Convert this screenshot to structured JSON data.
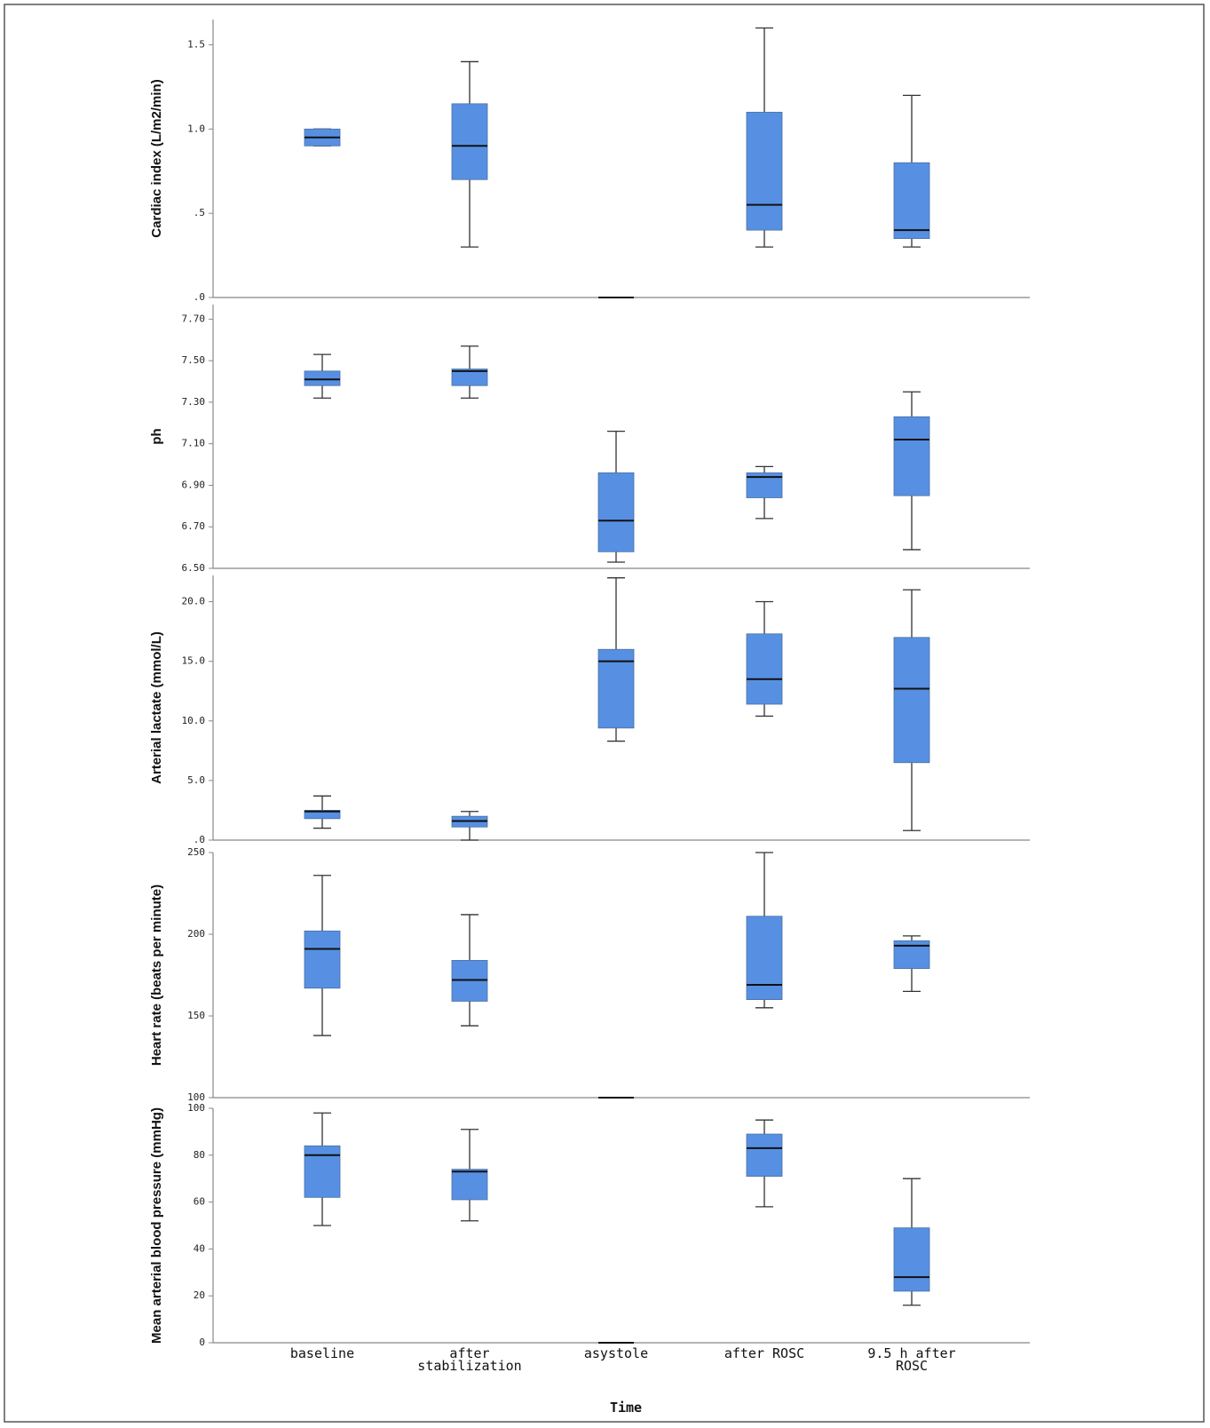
{
  "chart_data": [
    {
      "type": "box",
      "y_label": "Cardiac index (L/m2/min)",
      "color": "#5790e2",
      "ylim": [
        0,
        1.65
      ],
      "yticks": [
        {
          "value": 0,
          "label": ".0"
        },
        {
          "value": 0.5,
          "label": ".5"
        },
        {
          "value": 1.0,
          "label": "1.0"
        },
        {
          "value": 1.5,
          "label": "1.5"
        }
      ],
      "boxes": [
        {
          "whislo": 0.9,
          "q1": 0.9,
          "med": 0.95,
          "q3": 1.0,
          "whishi": 1.0
        },
        {
          "whislo": 0.3,
          "q1": 0.7,
          "med": 0.9,
          "q3": 1.15,
          "whishi": 1.4
        },
        {
          "whislo": 0,
          "q1": 0,
          "med": 0,
          "q3": 0,
          "whishi": 0
        },
        {
          "whislo": 0.3,
          "q1": 0.4,
          "med": 0.55,
          "q3": 1.1,
          "whishi": 1.6
        },
        {
          "whislo": 0.3,
          "q1": 0.35,
          "med": 0.4,
          "q3": 0.8,
          "whishi": 1.2
        }
      ]
    },
    {
      "type": "box",
      "y_label": "ph",
      "color": "#5790e2",
      "ylim": [
        6.5,
        7.77
      ],
      "yticks": [
        {
          "value": 6.5,
          "label": "6.50"
        },
        {
          "value": 6.7,
          "label": "6.70"
        },
        {
          "value": 6.9,
          "label": "6.90"
        },
        {
          "value": 7.1,
          "label": "7.10"
        },
        {
          "value": 7.3,
          "label": "7.30"
        },
        {
          "value": 7.5,
          "label": "7.50"
        },
        {
          "value": 7.7,
          "label": "7.70"
        }
      ],
      "boxes": [
        {
          "whislo": 7.32,
          "q1": 7.38,
          "med": 7.41,
          "q3": 7.45,
          "whishi": 7.53
        },
        {
          "whislo": 7.32,
          "q1": 7.38,
          "med": 7.45,
          "q3": 7.46,
          "whishi": 7.57
        },
        {
          "whislo": 6.53,
          "q1": 6.58,
          "med": 6.73,
          "q3": 6.96,
          "whishi": 7.16
        },
        {
          "whislo": 6.74,
          "q1": 6.84,
          "med": 6.94,
          "q3": 6.96,
          "whishi": 6.99
        },
        {
          "whislo": 6.59,
          "q1": 6.85,
          "med": 7.12,
          "q3": 7.23,
          "whishi": 7.35
        }
      ]
    },
    {
      "type": "box",
      "y_label": "Arterial lactate (mmol/L)",
      "color": "#5790e2",
      "ylim": [
        0,
        22.2
      ],
      "yticks": [
        {
          "value": 0,
          "label": ".0"
        },
        {
          "value": 5,
          "label": "5.0"
        },
        {
          "value": 10,
          "label": "10.0"
        },
        {
          "value": 15,
          "label": "15.0"
        },
        {
          "value": 20,
          "label": "20.0"
        }
      ],
      "boxes": [
        {
          "whislo": 1.0,
          "q1": 1.8,
          "med": 2.4,
          "q3": 2.5,
          "whishi": 3.7
        },
        {
          "whislo": 0.0,
          "q1": 1.1,
          "med": 1.6,
          "q3": 2.0,
          "whishi": 2.4
        },
        {
          "whislo": 8.3,
          "q1": 9.4,
          "med": 15.0,
          "q3": 16.0,
          "whishi": 22.0
        },
        {
          "whislo": 10.4,
          "q1": 11.4,
          "med": 13.5,
          "q3": 17.3,
          "whishi": 20.0
        },
        {
          "whislo": 0.8,
          "q1": 6.5,
          "med": 12.7,
          "q3": 17.0,
          "whishi": 21.0
        }
      ]
    },
    {
      "type": "box",
      "y_label": "Heart rate (beats per minute)",
      "color": "#5790e2",
      "ylim": [
        100,
        250
      ],
      "yticks": [
        100,
        150,
        200,
        250
      ],
      "boxes": [
        {
          "whislo": 138,
          "q1": 167,
          "med": 191,
          "q3": 202,
          "whishi": 236
        },
        {
          "whislo": 144,
          "q1": 159,
          "med": 172,
          "q3": 184,
          "whishi": 212
        },
        {
          "whislo": 100,
          "q1": 100,
          "med": 100,
          "q3": 100,
          "whishi": 100
        },
        {
          "whislo": 155,
          "q1": 160,
          "med": 169,
          "q3": 211,
          "whishi": 250
        },
        {
          "whislo": 165,
          "q1": 179,
          "med": 193,
          "q3": 196,
          "whishi": 199
        }
      ]
    },
    {
      "type": "box",
      "y_label": "Mean arterial blood pressure (mmHg)",
      "color": "#5790e2",
      "x_label": "Time",
      "categories": [
        "baseline",
        "after stabilization",
        "asystole",
        "after ROSC",
        "9.5 h after ROSC"
      ],
      "ylim": [
        0,
        100
      ],
      "yticks": [
        0,
        20,
        40,
        60,
        80,
        100
      ],
      "boxes": [
        {
          "whislo": 50,
          "q1": 62,
          "med": 80,
          "q3": 84,
          "whishi": 98
        },
        {
          "whislo": 52,
          "q1": 61,
          "med": 73,
          "q3": 74,
          "whishi": 91
        },
        {
          "whislo": 0,
          "q1": 0,
          "med": 0,
          "q3": 0,
          "whishi": 0
        },
        {
          "whislo": 58,
          "q1": 71,
          "med": 83,
          "q3": 89,
          "whishi": 95
        },
        {
          "whislo": 16,
          "q1": 22,
          "med": 28,
          "q3": 49,
          "whishi": 70
        }
      ]
    }
  ]
}
